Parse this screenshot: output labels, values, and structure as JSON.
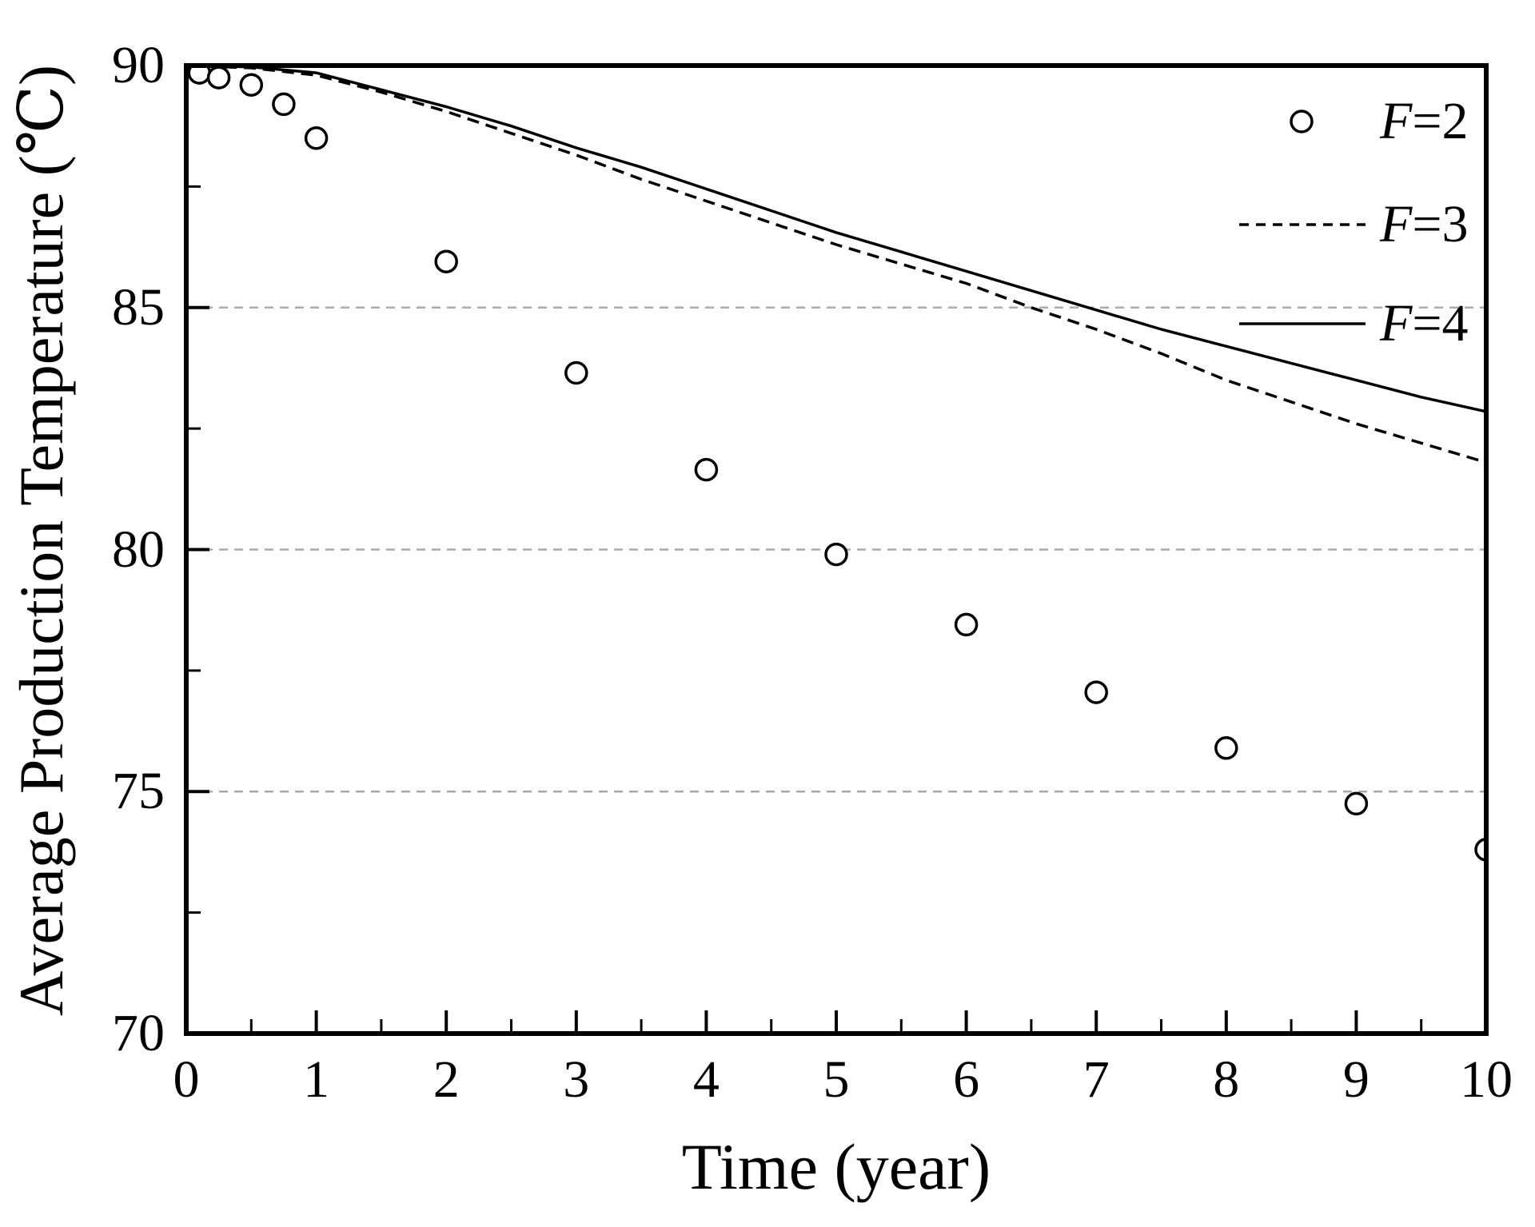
{
  "figure": {
    "background": "#ffffff",
    "line_color": "#000000",
    "gridline_color": "#aaaaaa"
  },
  "chart_data": {
    "type": "line",
    "title": "",
    "xlabel": "Time (year)",
    "ylabel": "Average Production Temperature (℃)",
    "xlim": [
      0,
      10
    ],
    "ylim": [
      70,
      90
    ],
    "x_ticks": [
      0,
      1,
      2,
      3,
      4,
      5,
      6,
      7,
      8,
      9,
      10
    ],
    "y_ticks": [
      70,
      75,
      80,
      85,
      90
    ],
    "x_minor_tick_step": 0.5,
    "y_minor_tick_step": 2.5,
    "y_gridlines": [
      75,
      80,
      85
    ],
    "grid": "horizontal-dashed-only",
    "legend_position": "top-right-inside",
    "series": [
      {
        "name": "F=2",
        "type": "scatter",
        "marker": "open-circle",
        "x": [
          0.1,
          0.25,
          0.5,
          0.75,
          1,
          2,
          3,
          4,
          5,
          6,
          7,
          8,
          9,
          10
        ],
        "y": [
          89.85,
          89.75,
          89.6,
          89.2,
          88.5,
          85.95,
          83.65,
          81.65,
          79.9,
          78.45,
          77.05,
          75.9,
          74.75,
          73.8
        ]
      },
      {
        "name": "F=3",
        "type": "line",
        "line_style": "dashed",
        "x": [
          0,
          0.5,
          1,
          1.5,
          2,
          2.5,
          3,
          3.5,
          4,
          4.5,
          5,
          5.5,
          6,
          6.5,
          7,
          7.5,
          8,
          8.5,
          9,
          9.5,
          10
        ],
        "y": [
          90.0,
          89.95,
          89.8,
          89.45,
          89.05,
          88.6,
          88.15,
          87.65,
          87.2,
          86.75,
          86.3,
          85.9,
          85.5,
          85.0,
          84.55,
          84.05,
          83.5,
          83.05,
          82.6,
          82.2,
          81.8
        ]
      },
      {
        "name": "F=4",
        "type": "line",
        "line_style": "solid",
        "x": [
          0,
          0.5,
          1,
          1.5,
          2,
          2.5,
          3,
          3.5,
          4,
          4.5,
          5,
          5.5,
          6,
          6.5,
          7,
          7.5,
          8,
          8.5,
          9,
          9.5,
          10
        ],
        "y": [
          90.0,
          89.97,
          89.85,
          89.5,
          89.15,
          88.75,
          88.3,
          87.9,
          87.45,
          87.0,
          86.55,
          86.15,
          85.75,
          85.35,
          84.95,
          84.55,
          84.2,
          83.85,
          83.5,
          83.15,
          82.85
        ]
      }
    ],
    "legend": {
      "items": [
        {
          "prefix": "F",
          "suffix": "=2",
          "marker": "open-circle"
        },
        {
          "prefix": "F",
          "suffix": "=3",
          "marker": "dashed-line"
        },
        {
          "prefix": "F",
          "suffix": "=4",
          "marker": "solid-line"
        }
      ]
    }
  }
}
